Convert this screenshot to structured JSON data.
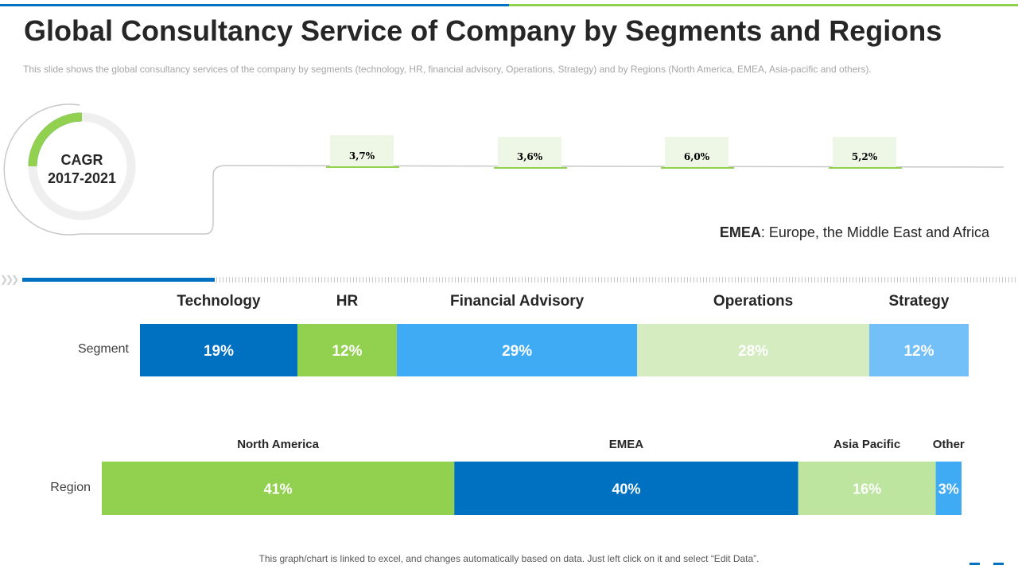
{
  "title": "Global Consultancy Service of Company by Segments and Regions",
  "subtitle": "This slide shows the global consultancy services of the company by segments (technology, HR, financial advisory, Operations, Strategy) and by Regions (North America, EMEA, Asia-pacific and others).",
  "cagr": {
    "label_line1": "CAGR",
    "label_line2": "2017-2021",
    "values": [
      "3,7%",
      "3,6%",
      "6,0%",
      "5,2%"
    ]
  },
  "emea_note": {
    "abbr": "EMEA",
    "text": ": Europe, the Middle East and Africa"
  },
  "footer": "This graph/chart is linked to excel, and changes automatically based on data. Just left click on it and select “Edit Data”.",
  "colors": {
    "blue_dark": "#0070c0",
    "green": "#92d050",
    "blue_light": "#3fabf5",
    "green_pale": "#d4ecc0",
    "blue_pale": "#73bff7",
    "green_light": "#bde5a0"
  },
  "chart_data": [
    {
      "type": "bar",
      "stacked": true,
      "orientation": "horizontal",
      "row_label": "Segment",
      "categories": [
        "Technology",
        "HR",
        "Financial Advisory",
        "Operations",
        "Strategy"
      ],
      "values": [
        19,
        12,
        29,
        28,
        12
      ],
      "labels": [
        "19%",
        "12%",
        "29%",
        "28%",
        "12%"
      ],
      "colors": [
        "#0070c0",
        "#92d050",
        "#3fabf5",
        "#d4ecc0",
        "#73bff7"
      ]
    },
    {
      "type": "bar",
      "stacked": true,
      "orientation": "horizontal",
      "row_label": "Region",
      "categories": [
        "North America",
        "EMEA",
        "Asia Pacific",
        "Other"
      ],
      "values": [
        41,
        40,
        16,
        3
      ],
      "labels": [
        "41%",
        "40%",
        "16%",
        "3%"
      ],
      "colors": [
        "#92d050",
        "#0070c0",
        "#bde5a0",
        "#3fabf5"
      ]
    }
  ]
}
